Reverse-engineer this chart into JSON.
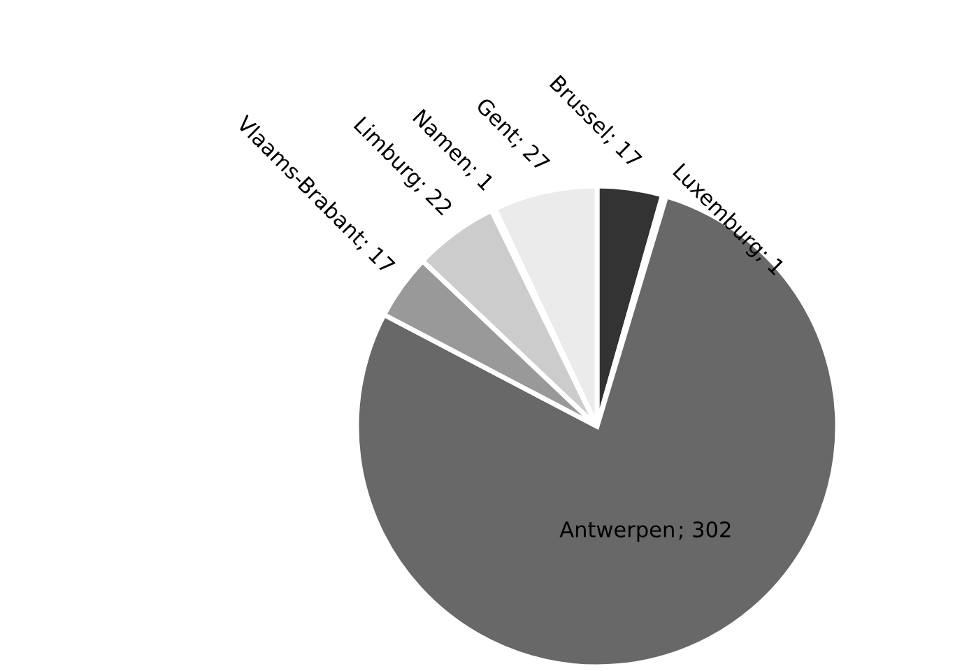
{
  "chart_data": {
    "type": "pie",
    "categories": [
      "Brussel",
      "Luxemburg",
      "Antwerpen",
      "Vlaams-Brabant",
      "Limburg",
      "Namen",
      "Gent"
    ],
    "values": [
      17,
      1,
      302,
      17,
      22,
      1,
      27
    ],
    "colors": [
      "#333333",
      "#4d4d4d",
      "#686868",
      "#999999",
      "#cccccc",
      "#f8f8f8",
      "#ebebeb"
    ],
    "value_labels": [
      "; 17",
      "; 1",
      "; 302",
      "; 17",
      "; 22",
      "; 1",
      "; 27"
    ],
    "legend": false
  }
}
